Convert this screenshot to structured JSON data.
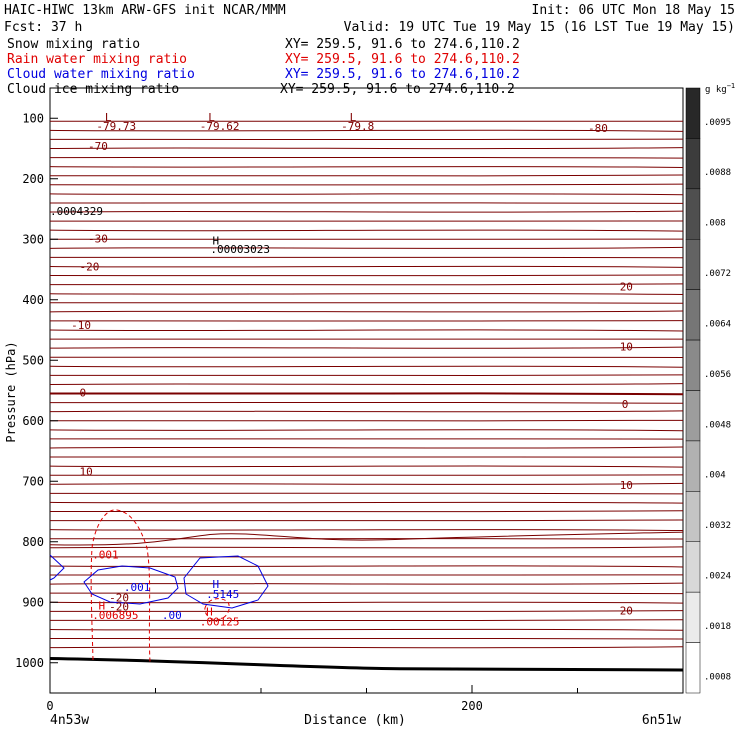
{
  "header": {
    "left_line1": "HAIC-HIWC 13km ARW-GFS init   NCAR/MMM",
    "right_line1": "Init: 06 UTC Mon 18 May 15",
    "left_line2": "Fcst:   37 h",
    "right_line2": "Valid: 19 UTC Tue 19 May 15 (16 LST Tue 19 May 15)"
  },
  "fields": [
    {
      "label": "Snow mixing ratio",
      "xy": "XY= 259.5, 91.6 to 274.6,110.2",
      "color": "#000000"
    },
    {
      "label": "Rain water mixing ratio",
      "xy": "XY= 259.5, 91.6 to 274.6,110.2",
      "color": "#e00000"
    },
    {
      "label": "Cloud water mixing ratio",
      "xy": "XY= 259.5, 91.6 to 274.6,110.2",
      "color": "#0000e0"
    },
    {
      "label": "Cloud ice mixing ratio",
      "xy": "XY= 259.5, 91.6 to 274.6,110.2",
      "color": "#000000"
    }
  ],
  "axes": {
    "ylabel": "Pressure (hPa)",
    "xlabel": "Distance (km)",
    "yticks": [
      "100",
      "200",
      "300",
      "400",
      "500",
      "600",
      "700",
      "800",
      "900",
      "1000"
    ],
    "xticks": [
      "0",
      "200"
    ],
    "left_endpoint": "4n53w",
    "right_endpoint": "6n51w"
  },
  "colorbar": {
    "unit": "g kg",
    "unit_exp": "−1",
    "labels": [
      ".0095",
      ".0088",
      ".008",
      ".0072",
      ".0064",
      ".0056",
      ".0048",
      ".004",
      ".0032",
      ".0024",
      ".0018",
      ".0008"
    ]
  },
  "chart_data": {
    "type": "contour",
    "ylim": [
      1050,
      50
    ],
    "xlim": [
      0,
      300
    ],
    "isotherms": [
      {
        "label": "-70",
        "p": 146
      },
      {
        "label": "-30",
        "p": 299
      },
      {
        "label": "-20",
        "p": 345
      },
      {
        "label": "-10",
        "p": 442
      },
      {
        "label": "0",
        "p": 553
      },
      {
        "label": "10",
        "p": 684
      },
      {
        "label": "-20",
        "p": 892
      },
      {
        "label": "-80",
        "p": 116
      }
    ],
    "annotations": [
      {
        "text": "L",
        "x": 26,
        "p": 98,
        "color": "#800000"
      },
      {
        "text": "-79.73",
        "x": 22,
        "p": 113,
        "color": "#800000"
      },
      {
        "text": "L",
        "x": 75,
        "p": 98,
        "color": "#800000"
      },
      {
        "text": "-79.62",
        "x": 71,
        "p": 113,
        "color": "#800000"
      },
      {
        "text": "L",
        "x": 142,
        "p": 98,
        "color": "#800000"
      },
      {
        "text": "-79.8",
        "x": 138,
        "p": 113,
        "color": "#800000"
      },
      {
        "text": ".0004329",
        "x": 0,
        "p": 253,
        "color": "#000000"
      },
      {
        "text": "H",
        "x": 77,
        "p": 302,
        "color": "#000000"
      },
      {
        "text": ".00003023",
        "x": 76,
        "p": 316,
        "color": "#000000"
      },
      {
        "text": "20",
        "x": 270,
        "p": 378,
        "color": "#800000"
      },
      {
        "text": "10",
        "x": 270,
        "p": 477,
        "color": "#800000"
      },
      {
        "text": "0",
        "x": 271,
        "p": 572,
        "color": "#800000"
      },
      {
        "text": "10",
        "x": 270,
        "p": 706,
        "color": "#800000"
      },
      {
        "text": "20",
        "x": 270,
        "p": 914,
        "color": "#800000"
      },
      {
        "text": ".001",
        "x": 20,
        "p": 821,
        "color": "#e00000"
      },
      {
        "text": ".001",
        "x": 35,
        "p": 875,
        "color": "#0000e0"
      },
      {
        "text": "H",
        "x": 23,
        "p": 905,
        "color": "#e00000"
      },
      {
        "text": "-20",
        "x": 28,
        "p": 907,
        "color": "#800000"
      },
      {
        "text": ".006895",
        "x": 20,
        "p": 921,
        "color": "#e00000"
      },
      {
        "text": "H",
        "x": 77,
        "p": 870,
        "color": "#0000e0"
      },
      {
        "text": ".5145",
        "x": 74,
        "p": 886,
        "color": "#0000e0"
      },
      {
        "text": ".00",
        "x": 53,
        "p": 921,
        "color": "#0000e0"
      },
      {
        "text": "H",
        "x": 74,
        "p": 915,
        "color": "#e00000"
      },
      {
        "text": ".00125",
        "x": 71,
        "p": 932,
        "color": "#e00000"
      }
    ]
  }
}
